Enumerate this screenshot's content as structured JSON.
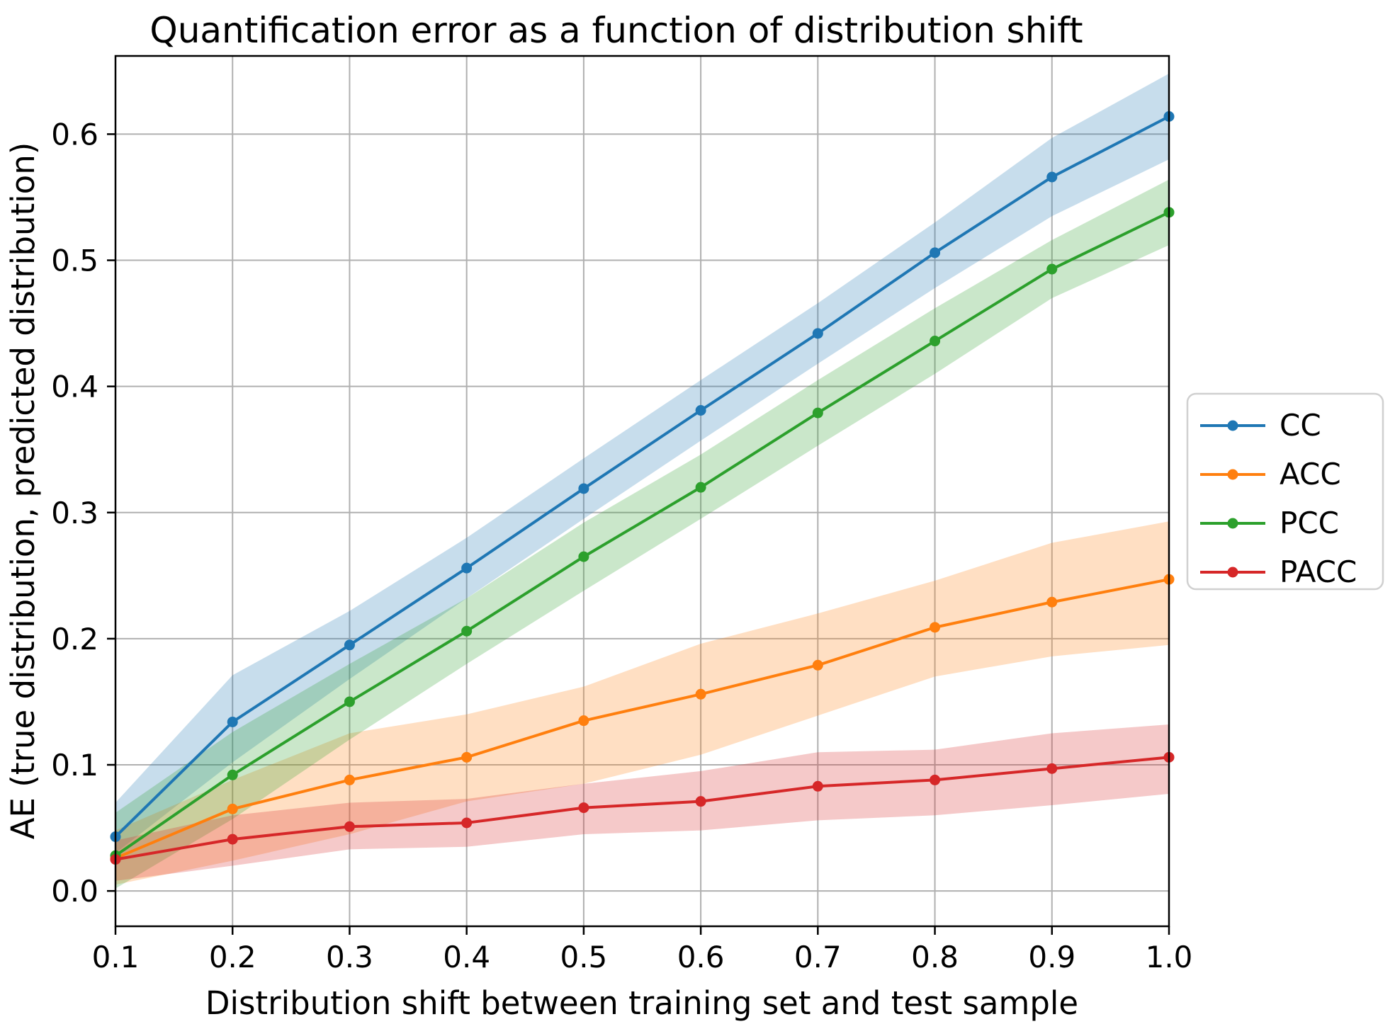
{
  "chart_data": {
    "type": "line",
    "title": "Quantification error as a function of distribution shift",
    "xlabel": "Distribution shift between training set and test sample",
    "ylabel": "AE (true distribution, predicted distribution)",
    "x": [
      0.1,
      0.2,
      0.3,
      0.4,
      0.5,
      0.6,
      0.7,
      0.8,
      0.9,
      1.0
    ],
    "x_tick_labels": [
      "0.1",
      "0.2",
      "0.3",
      "0.4",
      "0.5",
      "0.6",
      "0.7",
      "0.8",
      "0.9",
      "1.0"
    ],
    "y_ticks": [
      0.0,
      0.1,
      0.2,
      0.3,
      0.4,
      0.5,
      0.6
    ],
    "y_tick_labels": [
      "0.0",
      "0.1",
      "0.2",
      "0.3",
      "0.4",
      "0.5",
      "0.6"
    ],
    "xlim": [
      0.1,
      1.0
    ],
    "ylim": [
      -0.028,
      0.662
    ],
    "grid": true,
    "grid_color": "#b0b0b0",
    "spine_color": "#000000",
    "band_opacity": 0.25,
    "legend_position": "outside-right",
    "legend_entries": [
      "CC",
      "ACC",
      "PCC",
      "PACC"
    ],
    "series": [
      {
        "name": "CC",
        "color": "#1f77b4",
        "values": [
          0.043,
          0.134,
          0.195,
          0.256,
          0.319,
          0.381,
          0.442,
          0.506,
          0.566,
          0.614
        ],
        "band_lower": [
          0.03,
          0.102,
          0.168,
          0.232,
          0.295,
          0.357,
          0.418,
          0.478,
          0.535,
          0.58
        ],
        "band_upper": [
          0.07,
          0.171,
          0.222,
          0.28,
          0.343,
          0.405,
          0.466,
          0.53,
          0.597,
          0.648
        ]
      },
      {
        "name": "ACC",
        "color": "#ff7f0e",
        "values": [
          0.026,
          0.065,
          0.088,
          0.106,
          0.135,
          0.156,
          0.179,
          0.209,
          0.229,
          0.247
        ],
        "band_lower": [
          0.005,
          0.024,
          0.045,
          0.071,
          0.085,
          0.108,
          0.139,
          0.17,
          0.186,
          0.195
        ],
        "band_upper": [
          0.048,
          0.088,
          0.125,
          0.14,
          0.162,
          0.196,
          0.22,
          0.246,
          0.276,
          0.293
        ]
      },
      {
        "name": "PCC",
        "color": "#2ca02c",
        "values": [
          0.028,
          0.092,
          0.15,
          0.206,
          0.265,
          0.32,
          0.379,
          0.436,
          0.493,
          0.538
        ],
        "band_lower": [
          0.002,
          0.057,
          0.12,
          0.18,
          0.238,
          0.295,
          0.353,
          0.41,
          0.47,
          0.512
        ],
        "band_upper": [
          0.062,
          0.126,
          0.18,
          0.232,
          0.292,
          0.346,
          0.405,
          0.462,
          0.516,
          0.564
        ]
      },
      {
        "name": "PACC",
        "color": "#d62728",
        "values": [
          0.025,
          0.041,
          0.051,
          0.054,
          0.066,
          0.071,
          0.083,
          0.088,
          0.097,
          0.106
        ],
        "band_lower": [
          0.008,
          0.02,
          0.033,
          0.035,
          0.045,
          0.048,
          0.056,
          0.06,
          0.068,
          0.077
        ],
        "band_upper": [
          0.04,
          0.06,
          0.07,
          0.073,
          0.085,
          0.095,
          0.11,
          0.112,
          0.125,
          0.132
        ]
      }
    ]
  }
}
